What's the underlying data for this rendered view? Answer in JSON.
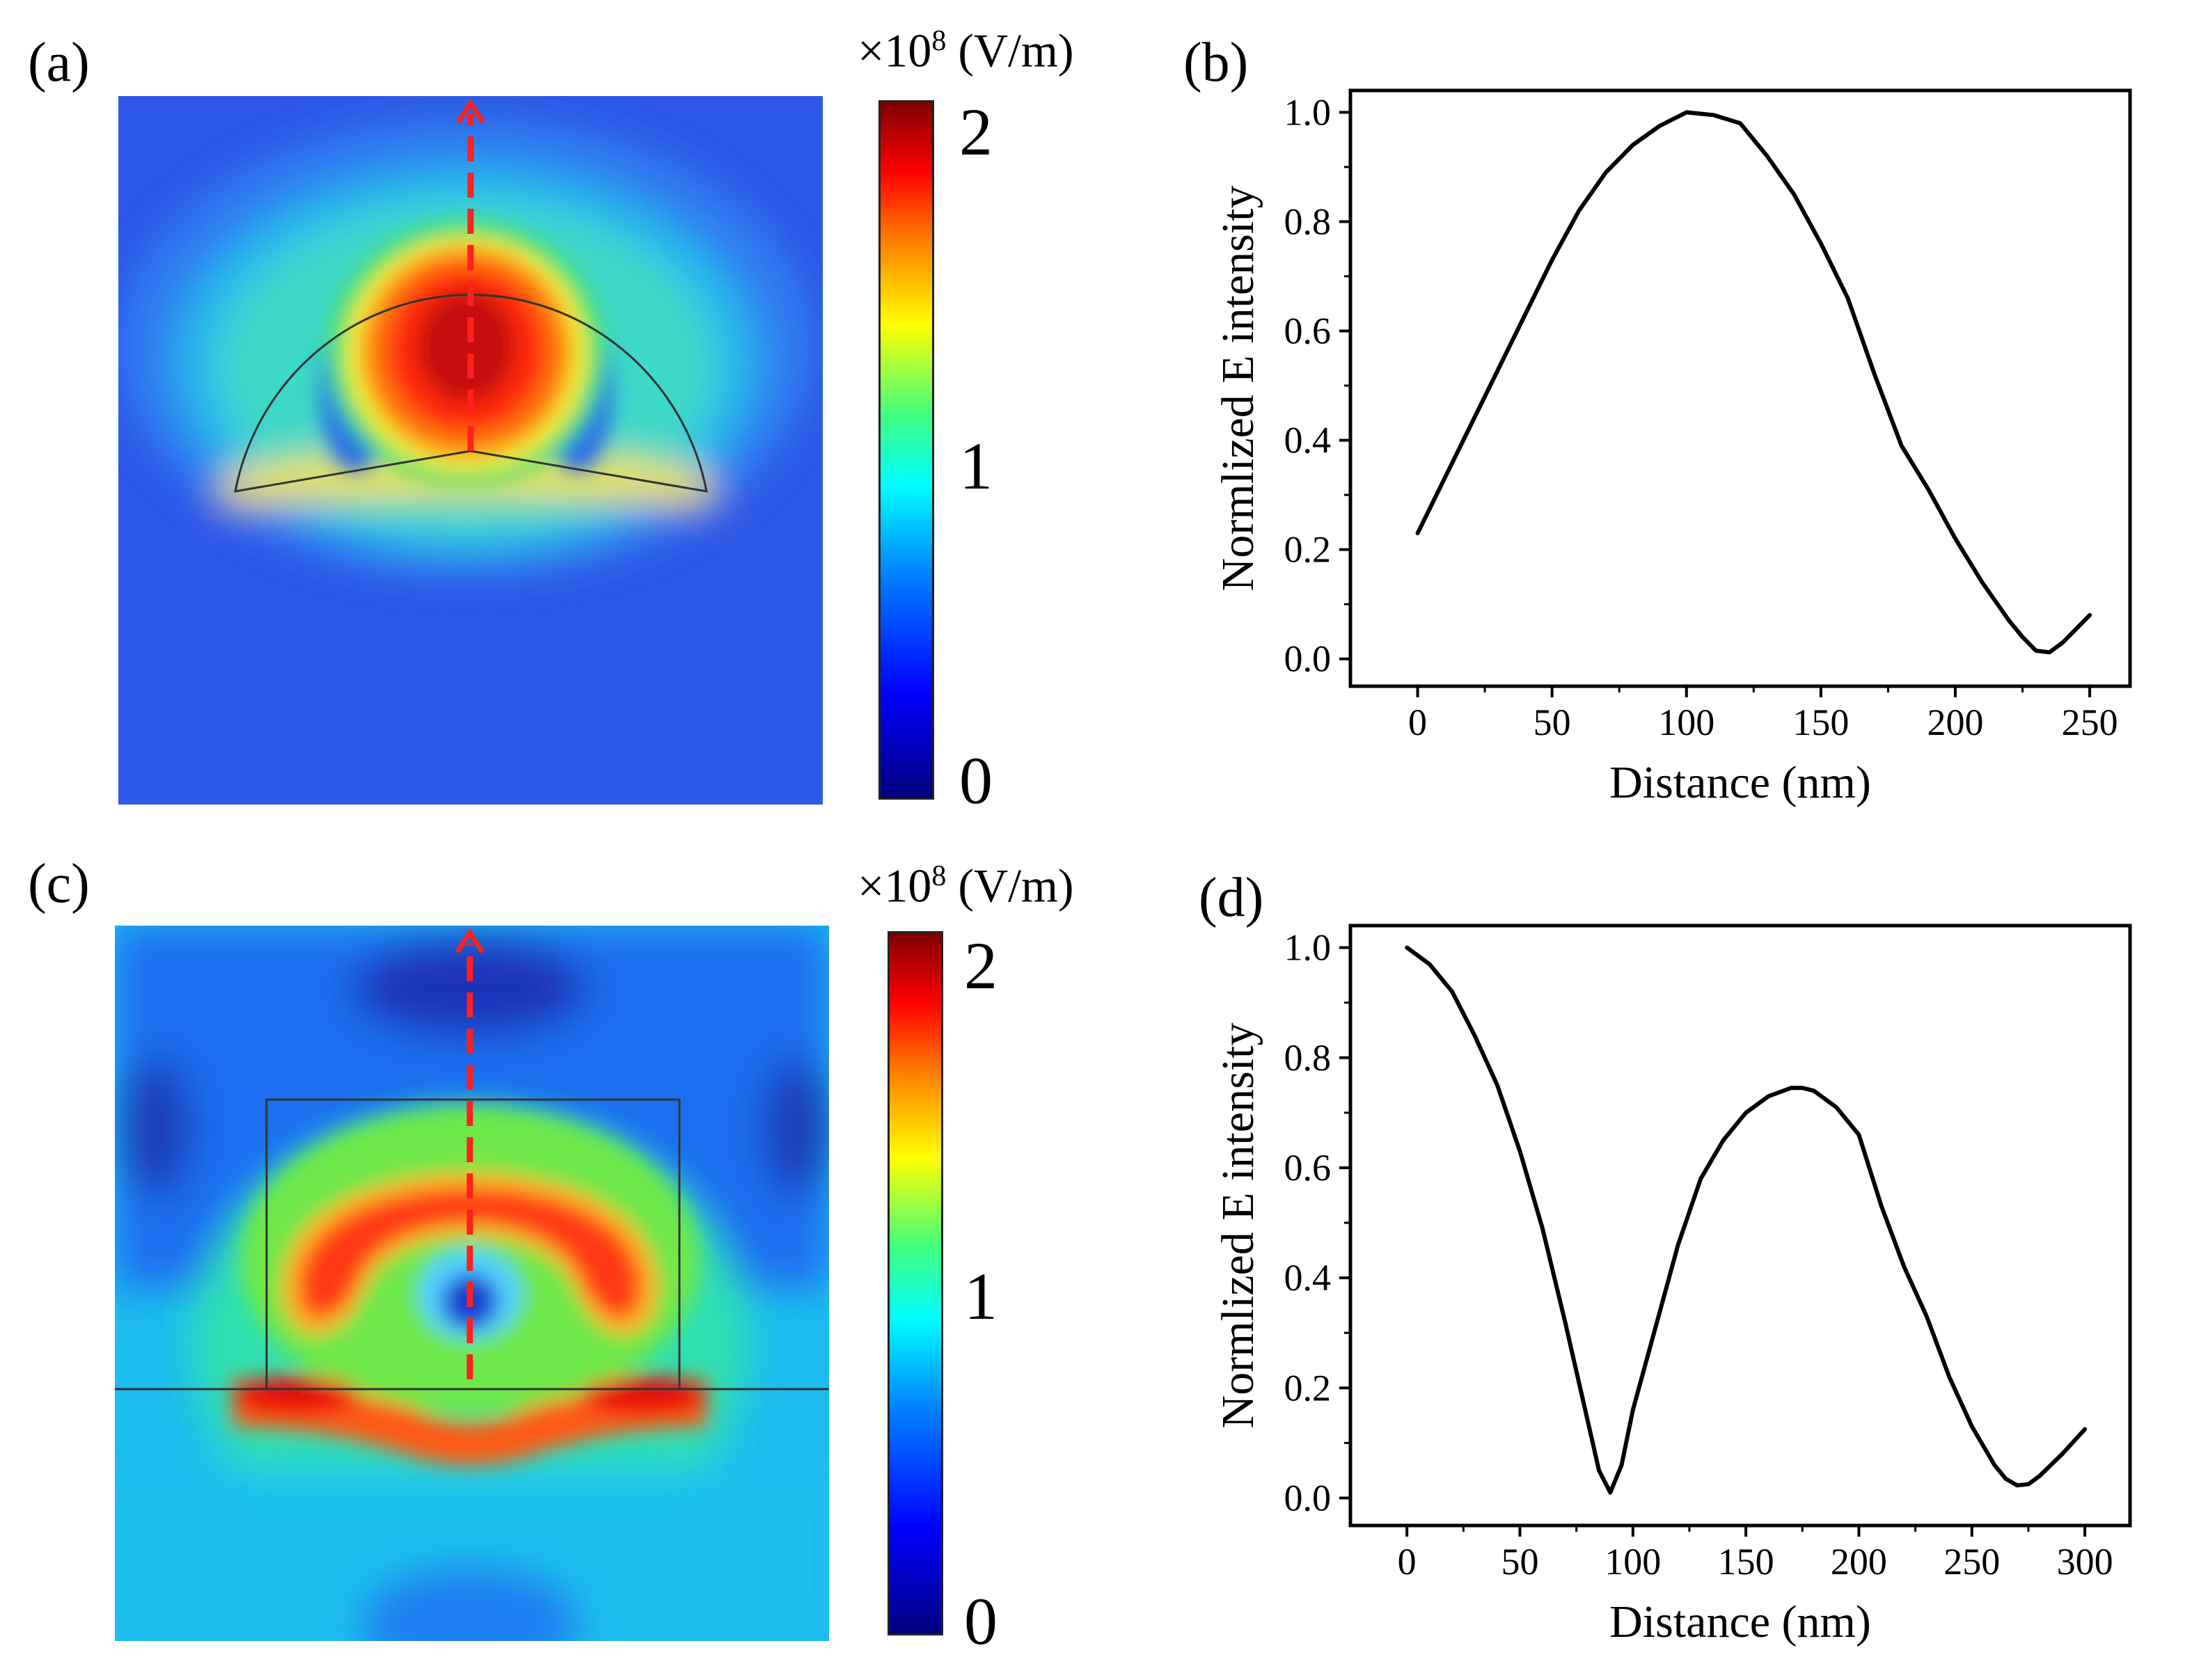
{
  "panels": {
    "a": {
      "label": "(a)",
      "unit_prefix": "×10",
      "unit_exp": "8",
      "unit_suffix": " (V/m)",
      "cbar_max": "2",
      "cbar_mid": "1",
      "cbar_min": "0"
    },
    "b": {
      "label": "(b)"
    },
    "c": {
      "label": "(c)",
      "unit_prefix": "×10",
      "unit_exp": "8",
      "unit_suffix": " (V/m)",
      "cbar_max": "2",
      "cbar_mid": "1",
      "cbar_min": "0"
    },
    "d": {
      "label": "(d)"
    }
  },
  "colors": {
    "arrow": "#ff2020",
    "line": "#000000"
  },
  "chart_data": [
    {
      "id": "b",
      "type": "line",
      "title": "",
      "xlabel": "Distance (nm)",
      "ylabel": "Normlized E intensity",
      "xlim": [
        -25,
        265
      ],
      "ylim": [
        -0.05,
        1.04
      ],
      "xticks": [
        0,
        50,
        100,
        150,
        200,
        250
      ],
      "yticks": [
        0.0,
        0.2,
        0.4,
        0.6,
        0.8,
        1.0
      ],
      "ytick_labels": [
        "0.0",
        "0.2",
        "0.4",
        "0.6",
        "0.8",
        "1.0"
      ],
      "series": [
        {
          "name": "E intensity",
          "x": [
            0,
            10,
            20,
            30,
            40,
            50,
            60,
            70,
            80,
            90,
            100,
            110,
            120,
            130,
            140,
            150,
            160,
            170,
            180,
            190,
            200,
            210,
            220,
            225,
            230,
            235,
            240,
            245,
            250
          ],
          "y": [
            0.23,
            0.33,
            0.43,
            0.53,
            0.63,
            0.73,
            0.82,
            0.89,
            0.94,
            0.975,
            1.0,
            0.995,
            0.98,
            0.92,
            0.85,
            0.76,
            0.66,
            0.52,
            0.39,
            0.31,
            0.22,
            0.14,
            0.07,
            0.04,
            0.015,
            0.012,
            0.03,
            0.055,
            0.08
          ]
        }
      ]
    },
    {
      "id": "d",
      "type": "line",
      "title": "",
      "xlabel": "Distance (nm)",
      "ylabel": "Normlized E intensity",
      "xlim": [
        -25,
        320
      ],
      "ylim": [
        -0.05,
        1.04
      ],
      "xticks": [
        0,
        50,
        100,
        150,
        200,
        250,
        300
      ],
      "yticks": [
        0.0,
        0.2,
        0.4,
        0.6,
        0.8,
        1.0
      ],
      "ytick_labels": [
        "0.0",
        "0.2",
        "0.4",
        "0.6",
        "0.8",
        "1.0"
      ],
      "series": [
        {
          "name": "E intensity",
          "x": [
            0,
            10,
            20,
            30,
            40,
            50,
            60,
            70,
            80,
            85,
            90,
            95,
            100,
            110,
            120,
            130,
            140,
            150,
            160,
            170,
            175,
            180,
            190,
            200,
            210,
            220,
            230,
            240,
            250,
            260,
            265,
            270,
            275,
            280,
            290,
            300
          ],
          "y": [
            1.0,
            0.97,
            0.92,
            0.84,
            0.75,
            0.63,
            0.49,
            0.32,
            0.14,
            0.05,
            0.01,
            0.06,
            0.16,
            0.31,
            0.46,
            0.58,
            0.65,
            0.7,
            0.73,
            0.745,
            0.745,
            0.74,
            0.71,
            0.66,
            0.53,
            0.42,
            0.33,
            0.22,
            0.13,
            0.06,
            0.035,
            0.023,
            0.025,
            0.04,
            0.08,
            0.125
          ]
        }
      ]
    }
  ]
}
